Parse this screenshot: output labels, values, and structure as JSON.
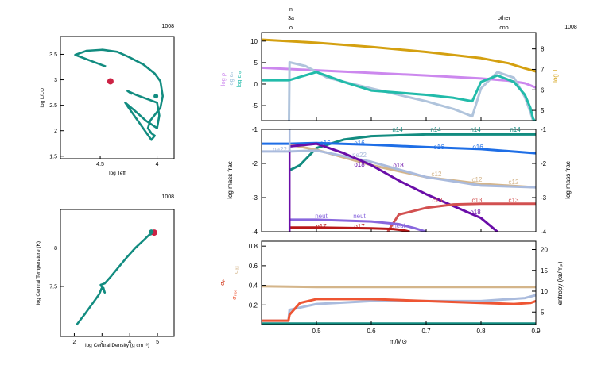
{
  "model_number": "1008",
  "hr": {
    "xlabel": "log Teff",
    "ylabel": "log L/L⊙",
    "x_ticks": [
      "4.5",
      "4"
    ],
    "y_ticks": [
      "3.5",
      "3",
      "2.5",
      "2",
      "1.5"
    ]
  },
  "center": {
    "xlabel": "log Central Density (g cm⁻³)",
    "ylabel": "log Central Temperature (K)",
    "x_ticks": [
      "2",
      "3",
      "4",
      "5"
    ],
    "y_ticks": [
      "8",
      "7.5"
    ]
  },
  "top_markers": [
    {
      "id": "n3a",
      "lines": [
        "n",
        "3a",
        "o"
      ]
    },
    {
      "id": "other",
      "lines": [
        "other",
        "cno"
      ]
    }
  ],
  "profile_top": {
    "left_labels": [
      {
        "text": "log ρ",
        "color": "#cc88ee"
      },
      {
        "text": "log εₙ",
        "color": "#99bbd8"
      },
      {
        "text": "log εₙₓ",
        "color": "#22bbaa"
      }
    ],
    "right_label": "log T",
    "right_color": "#d4a010",
    "left_ticks": [
      "10",
      "5",
      "0",
      "-5"
    ],
    "right_ticks": [
      "8",
      "7",
      "6",
      "5"
    ]
  },
  "profile_mid": {
    "ylabel": "log mass frac",
    "left_ticks": [
      "-1",
      "-2",
      "-3",
      "-4"
    ],
    "right_ticks": [
      "-1",
      "-2",
      "-3",
      "-4"
    ],
    "species": [
      {
        "text": "n14"
      },
      {
        "text": "n14"
      },
      {
        "text": "n14"
      },
      {
        "text": "n14"
      },
      {
        "text": "o16"
      },
      {
        "text": "o16"
      },
      {
        "text": "o16"
      },
      {
        "text": "o16"
      },
      {
        "text": "c12"
      },
      {
        "text": "c12"
      },
      {
        "text": "c12"
      },
      {
        "text": "c13"
      },
      {
        "text": "c13"
      },
      {
        "text": "c13"
      },
      {
        "text": "o18"
      },
      {
        "text": "o18"
      },
      {
        "text": "o18"
      },
      {
        "text": "ne22"
      },
      {
        "text": "ne22"
      },
      {
        "text": "neut"
      },
      {
        "text": "neut"
      },
      {
        "text": "neut"
      },
      {
        "text": "o17"
      },
      {
        "text": "o17"
      }
    ]
  },
  "profile_bot": {
    "left_labels": [
      "σₐₓ",
      "σₚ",
      "σᵣₐₓ"
    ],
    "right_label": "entropy (kʙ/mₚ)",
    "left_ticks": [
      "0.8",
      "0.6",
      "0.4",
      "0.2"
    ],
    "right_ticks": [
      "20",
      "15",
      "10",
      "5"
    ],
    "x_ticks": [
      "0.5",
      "0.6",
      "0.7",
      "0.8",
      "0.9"
    ],
    "xlabel": "m/M⊙"
  },
  "chart_data": [
    {
      "type": "line",
      "title": "",
      "xlabel": "log Teff",
      "ylabel": "log L/L⊙",
      "x_reversed": true,
      "xlim": [
        4.85,
        3.85
      ],
      "ylim": [
        1.45,
        3.85
      ],
      "series": [
        {
          "color": "#128c80",
          "x": [
            4.45,
            4.58,
            4.72,
            4.62,
            4.48,
            4.35,
            4.25,
            4.12,
            4.02,
            3.97,
            3.95,
            3.97,
            4.06,
            4.08,
            4.05,
            4.02,
            4.05,
            4.25,
            4.28,
            4.2,
            4.1,
            4.0,
            3.98,
            4.0,
            4.18,
            4.26,
            4.22
          ],
          "y": [
            3.26,
            3.37,
            3.49,
            3.57,
            3.59,
            3.55,
            3.45,
            3.3,
            3.12,
            2.97,
            2.68,
            2.45,
            2.2,
            2.05,
            1.95,
            1.9,
            1.82,
            2.45,
            2.55,
            2.4,
            2.2,
            2.05,
            2.3,
            2.55,
            2.7,
            2.78,
            2.72
          ]
        }
      ],
      "markers": [
        {
          "x": 4.41,
          "y": 2.97,
          "color": "#cc2244"
        },
        {
          "x": 4.01,
          "y": 2.68,
          "color": "#128c80"
        }
      ]
    },
    {
      "type": "line",
      "title": "",
      "xlabel": "log Central Density",
      "ylabel": "log Central Temperature",
      "xlim": [
        1.5,
        5.6
      ],
      "ylim": [
        6.85,
        8.5
      ],
      "series": [
        {
          "color": "#128c80",
          "x": [
            2.08,
            2.4,
            2.7,
            2.9,
            2.98,
            3.05,
            3.1,
            2.95,
            3.1,
            3.3,
            3.6,
            3.9,
            4.2,
            4.5,
            4.7,
            4.78,
            4.82,
            4.88,
            4.91
          ],
          "y": [
            7.0,
            7.15,
            7.3,
            7.4,
            7.47,
            7.48,
            7.42,
            7.52,
            7.54,
            7.62,
            7.75,
            7.88,
            8.0,
            8.1,
            8.17,
            8.18,
            8.19,
            8.21,
            8.2
          ]
        }
      ],
      "markers": [
        {
          "x": 4.88,
          "y": 8.2,
          "color": "#cc2244"
        },
        {
          "x": 4.78,
          "y": 8.21,
          "color": "#128c80"
        }
      ]
    },
    {
      "type": "line",
      "xlim": [
        0.4,
        0.9
      ],
      "ylim_left": [
        -8.5,
        12
      ],
      "ylim_right": [
        4.5,
        8.8
      ],
      "series": [
        {
          "name": "log T",
          "axis": "right",
          "color": "#d4a010",
          "x": [
            0.4,
            0.5,
            0.6,
            0.7,
            0.8,
            0.85,
            0.88,
            0.9
          ],
          "y": [
            8.45,
            8.3,
            8.1,
            7.85,
            7.55,
            7.3,
            7.05,
            6.9
          ]
        },
        {
          "name": "log ρ",
          "axis": "left",
          "color": "#cc88ee",
          "x": [
            0.4,
            0.5,
            0.6,
            0.7,
            0.8,
            0.85,
            0.88,
            0.9
          ],
          "y": [
            3.8,
            3.2,
            2.6,
            2.0,
            1.3,
            0.8,
            0.2,
            -0.8
          ]
        },
        {
          "name": "log εₙ",
          "axis": "left",
          "color": "#b0c4dc",
          "x": [
            0.4,
            0.45,
            0.451,
            0.48,
            0.52,
            0.6,
            0.7,
            0.75,
            0.784,
            0.8,
            0.83,
            0.86,
            0.88,
            0.89,
            0.895,
            0.9
          ],
          "y": [
            -9,
            -9,
            5.1,
            4.2,
            1.5,
            -1.0,
            -4.0,
            -5.8,
            -7.5,
            -1.0,
            2.8,
            1.5,
            -3.0,
            -6.5,
            -8.5,
            -9
          ]
        },
        {
          "name": "log εₙₓ",
          "axis": "left",
          "color": "#22bbaa",
          "x": [
            0.4,
            0.45,
            0.5,
            0.55,
            0.6,
            0.7,
            0.75,
            0.784,
            0.8,
            0.83,
            0.86,
            0.88,
            0.89,
            0.895,
            0.9
          ],
          "y": [
            0.9,
            0.9,
            2.8,
            0.5,
            -1.5,
            -2.5,
            -3.2,
            -4.0,
            0.5,
            2.0,
            0.5,
            -2.5,
            -5.5,
            -8.0,
            -9
          ]
        }
      ]
    },
    {
      "type": "line",
      "xlim": [
        0.4,
        0.9
      ],
      "ylim": [
        -4,
        -1
      ],
      "series": [
        {
          "name": "n14",
          "color": "#128c80",
          "x": [
            0.451,
            0.47,
            0.5,
            0.55,
            0.6,
            0.7,
            0.8,
            0.9
          ],
          "y": [
            -2.2,
            -2.05,
            -1.55,
            -1.3,
            -1.2,
            -1.15,
            -1.15,
            -1.15
          ]
        },
        {
          "name": "o16",
          "color": "#1e6ee6",
          "x": [
            0.4,
            0.451,
            0.5,
            0.6,
            0.7,
            0.8,
            0.9
          ],
          "y": [
            -1.42,
            -1.42,
            -1.4,
            -1.45,
            -1.52,
            -1.58,
            -1.7
          ]
        },
        {
          "name": "c12",
          "color": "#d4b58a",
          "x": [
            0.451,
            0.5,
            0.6,
            0.7,
            0.8,
            0.9
          ],
          "y": [
            -1.45,
            -1.6,
            -2.05,
            -2.4,
            -2.6,
            -2.7
          ]
        },
        {
          "name": "ne22",
          "color": "#aabbdd",
          "x": [
            0.4,
            0.451,
            0.5,
            0.6,
            0.7,
            0.8,
            0.9
          ],
          "y": [
            -1.65,
            -1.65,
            -1.62,
            -1.95,
            -2.4,
            -2.65,
            -2.7
          ]
        },
        {
          "name": "o18",
          "color": "#6a0da8",
          "x": [
            0.451,
            0.5,
            0.55,
            0.6,
            0.65,
            0.7,
            0.75,
            0.8,
            0.83
          ],
          "y": [
            -1.5,
            -1.42,
            -1.7,
            -2.05,
            -2.5,
            -2.9,
            -3.25,
            -3.6,
            -4.0
          ]
        },
        {
          "name": "c13",
          "color": "#d25050",
          "x": [
            0.63,
            0.65,
            0.7,
            0.75,
            0.8,
            0.85,
            0.9
          ],
          "y": [
            -4.0,
            -3.5,
            -3.3,
            -3.2,
            -3.18,
            -3.18,
            -3.18
          ]
        },
        {
          "name": "neut",
          "color": "#8866dd",
          "x": [
            0.451,
            0.5,
            0.6,
            0.65,
            0.68,
            0.7
          ],
          "y": [
            -3.65,
            -3.65,
            -3.7,
            -3.78,
            -3.9,
            -4.0
          ]
        },
        {
          "name": "o17",
          "color": "#b81818",
          "x": [
            0.451,
            0.5,
            0.6,
            0.64,
            0.66,
            0.67
          ],
          "y": [
            -3.88,
            -3.88,
            -3.9,
            -3.92,
            -3.96,
            -4.0
          ]
        }
      ]
    },
    {
      "type": "line",
      "xlim": [
        0.4,
        0.9
      ],
      "ylim_left": [
        0,
        0.85
      ],
      "ylim_right": [
        2,
        22
      ],
      "series": [
        {
          "name": "entropy",
          "axis": "right",
          "color": "#d4b58a",
          "x": [
            0.4,
            0.5,
            0.6,
            0.7,
            0.8,
            0.9
          ],
          "y": [
            11.2,
            11.0,
            11.0,
            11.0,
            11.0,
            11.0
          ]
        },
        {
          "name": "σₚ",
          "axis": "left",
          "color": "#aabbdd",
          "x": [
            0.4,
            0.449,
            0.451,
            0.5,
            0.6,
            0.7,
            0.8,
            0.88,
            0.9
          ],
          "y": [
            0.04,
            0.04,
            0.15,
            0.21,
            0.24,
            0.24,
            0.24,
            0.27,
            0.3
          ]
        },
        {
          "name": "σᵣₐₓ",
          "axis": "left",
          "color": "#ee5533",
          "x": [
            0.4,
            0.449,
            0.451,
            0.47,
            0.5,
            0.6,
            0.7,
            0.8,
            0.86,
            0.89,
            0.9
          ],
          "y": [
            0.04,
            0.04,
            0.1,
            0.22,
            0.26,
            0.26,
            0.24,
            0.22,
            0.21,
            0.22,
            0.24
          ]
        },
        {
          "name": "σₐₓ",
          "axis": "left",
          "color": "#128c80",
          "x": [
            0.4,
            0.9
          ],
          "y": [
            0.01,
            0.01
          ]
        }
      ]
    }
  ]
}
